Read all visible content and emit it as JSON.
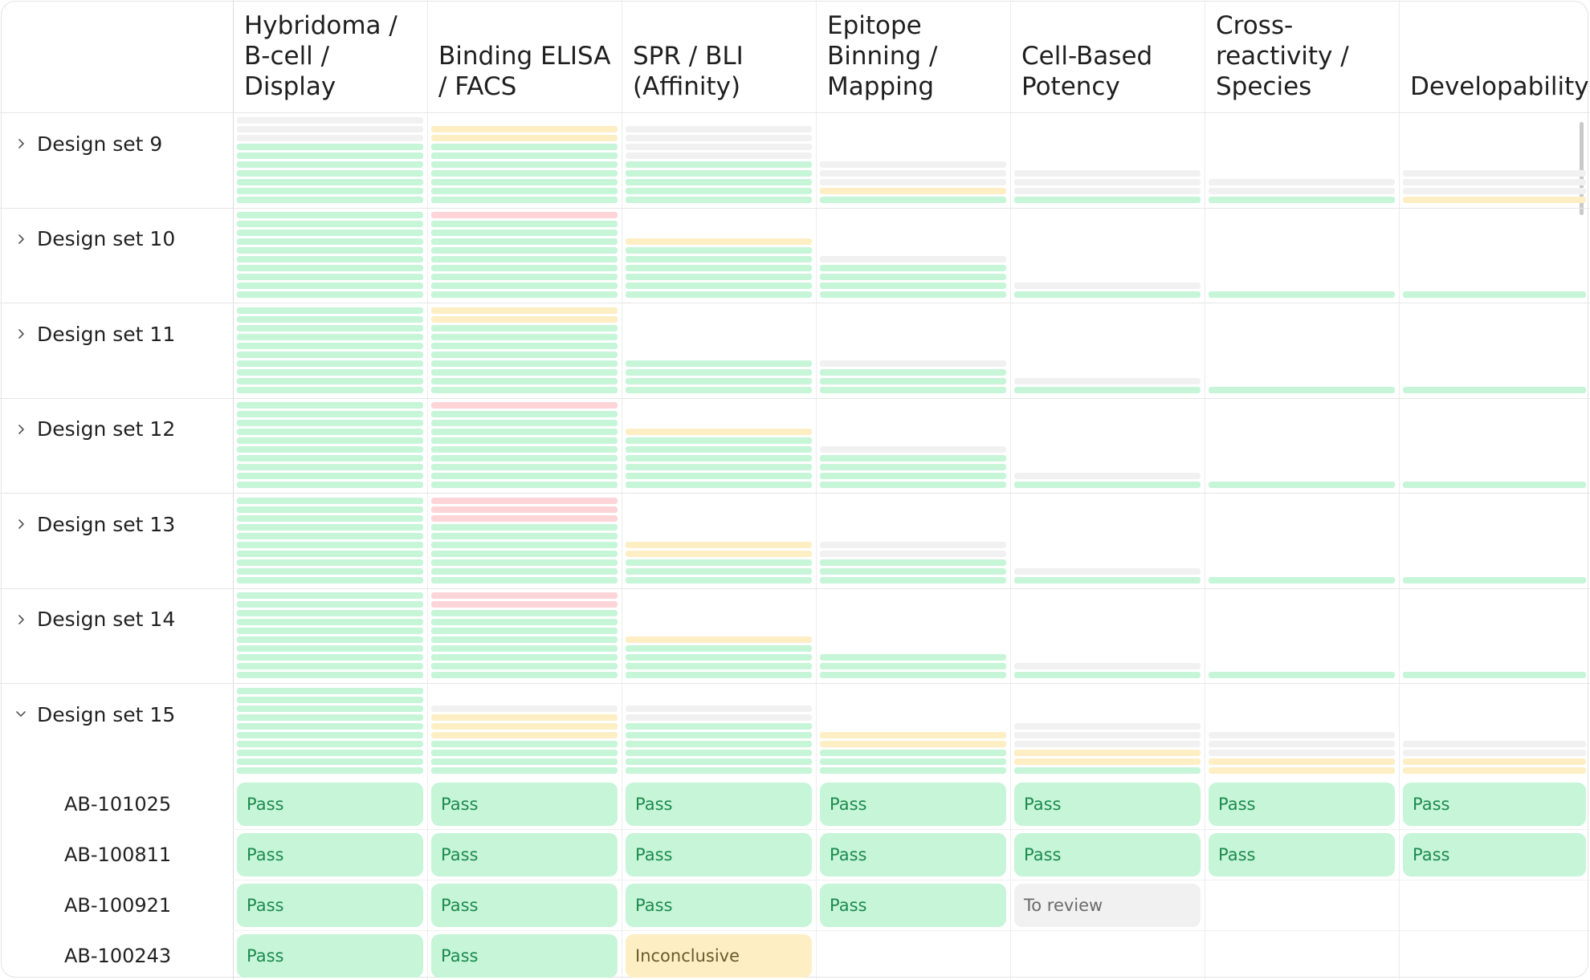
{
  "columns": [
    "Hybridoma /\nB-cell /\nDisplay",
    "Binding ELISA\n/ FACS",
    "SPR / BLI\n(Affinity)",
    "Epitope\nBinning /\nMapping",
    "Cell-Based\nPotency",
    "Cross-\nreactivity /\nSpecies",
    "Developability"
  ],
  "status_colors": {
    "pass": "#c6f5d8",
    "fail": "#fdd5d8",
    "inconclusive": "#fdeec4",
    "to_review": "#f1f1f1"
  },
  "design_sets": [
    {
      "label": "Design set 9",
      "expanded": false,
      "stacks": [
        "rrrppppppp",
        "iippppppp",
        "rrrrppppp",
        "rrrip",
        "rrrp",
        "rrp",
        "rrri"
      ]
    },
    {
      "label": "Design set 10",
      "expanded": false,
      "stacks": [
        "pppppppppp",
        "fppppppppp",
        "ipppppp",
        "rpppp",
        "rp",
        "p",
        "p"
      ]
    },
    {
      "label": "Design set 11",
      "expanded": false,
      "stacks": [
        "pppppppppp",
        "iipppppppp",
        "pppp",
        "rppp",
        "rp",
        "p",
        "p"
      ]
    },
    {
      "label": "Design set 12",
      "expanded": false,
      "stacks": [
        "pppppppppp",
        "fppppppppp",
        "ipppppp",
        "rpppp",
        "rp",
        "p",
        "p"
      ]
    },
    {
      "label": "Design set 13",
      "expanded": false,
      "stacks": [
        "pppppppppp",
        "fffppppppp",
        "iippp",
        "rrppp",
        "rp",
        "p",
        "p"
      ]
    },
    {
      "label": "Design set 14",
      "expanded": false,
      "stacks": [
        "pppppppppp",
        "ffpppppppp",
        "ipppp",
        "ppp",
        "rp",
        "p",
        "p"
      ]
    },
    {
      "label": "Design set 15",
      "expanded": true,
      "stacks": [
        "pppppppppp",
        "riiipppp",
        "rrpppppp",
        "iippp",
        "rrriip",
        "rrrii",
        "rrii"
      ],
      "candidates": [
        {
          "id": "AB-101025",
          "cells": [
            "Pass",
            "Pass",
            "Pass",
            "Pass",
            "Pass",
            "Pass",
            "Pass"
          ]
        },
        {
          "id": "AB-100811",
          "cells": [
            "Pass",
            "Pass",
            "Pass",
            "Pass",
            "Pass",
            "Pass",
            "Pass"
          ]
        },
        {
          "id": "AB-100921",
          "cells": [
            "Pass",
            "Pass",
            "Pass",
            "Pass",
            "To review",
            "",
            ""
          ]
        },
        {
          "id": "AB-100243",
          "cells": [
            "Pass",
            "Pass",
            "Inconclusive",
            "",
            "",
            "",
            ""
          ]
        }
      ]
    }
  ]
}
